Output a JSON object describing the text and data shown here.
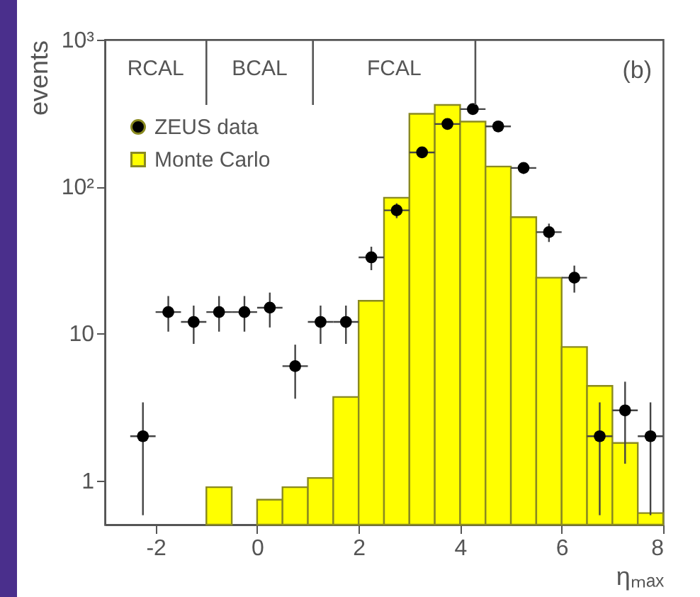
{
  "chart_data": {
    "type": "histogram",
    "xlabel": "ηₘₐₓ",
    "ylabel": "events",
    "xlim": [
      -3,
      8
    ],
    "xticks": [
      -2,
      0,
      2,
      4,
      6,
      8
    ],
    "ylim": [
      0.5,
      1000
    ],
    "yticks": [
      1,
      10,
      {
        "value": 100,
        "label": "10²"
      },
      {
        "value": 1000,
        "label": "10³"
      }
    ],
    "log": true,
    "grid": false,
    "legend": "top left",
    "bins": [
      -1,
      -0.5,
      0,
      0.5,
      1,
      1.5,
      2,
      2.5,
      3,
      3.5,
      4,
      4.5,
      5,
      5.5,
      6,
      6.5,
      7,
      7.5,
      8
    ],
    "series": [
      {
        "name": "ZEUS data",
        "type": "scatter",
        "color": "#000000",
        "marker": "circle",
        "x": [
          -2.25,
          -1.75,
          -1.25,
          -0.75,
          -0.25,
          0.25,
          0.75,
          1.25,
          1.75,
          2.25,
          2.75,
          3.25,
          3.75,
          4.25,
          4.75,
          5.25,
          5.75,
          6.25,
          6.75,
          7.25,
          7.75
        ],
        "values": [
          2,
          14,
          12,
          14,
          14,
          15,
          6,
          12,
          12,
          33,
          69,
          171,
          267,
          337,
          257,
          134,
          49,
          24,
          2,
          3,
          2
        ],
        "errors": [
          [
            0.58,
            3.4
          ],
          [
            10.3,
            18
          ],
          [
            8.5,
            15.5
          ],
          [
            10.3,
            18
          ],
          [
            10.3,
            18
          ],
          [
            11,
            19
          ],
          [
            3.6,
            8.4
          ],
          [
            8.5,
            15.5
          ],
          [
            8.5,
            15.5
          ],
          [
            27,
            39
          ],
          [
            61,
            77
          ],
          [
            158,
            184
          ],
          [
            251,
            283
          ],
          [
            319,
            355
          ],
          [
            241,
            273
          ],
          [
            122,
            146
          ],
          [
            42,
            56
          ],
          [
            19,
            29
          ],
          [
            0.58,
            3.4
          ],
          [
            1.3,
            4.7
          ],
          [
            0.58,
            3.4
          ]
        ],
        "xerrors": [
          0.25,
          0.25,
          0.25,
          0.25,
          0.25,
          0.25,
          0.25,
          0.25,
          0.25,
          0.25,
          0.25,
          0.25,
          0.25,
          0.25,
          0.25,
          0.25,
          0.25,
          0.25,
          0.25,
          0.25,
          0.25
        ]
      },
      {
        "name": "Monte Carlo",
        "color": "#ffff00",
        "values": [
          0.9,
          null,
          0.74,
          0.9,
          1.04,
          3.7,
          16.7,
          84,
          313,
          360,
          277,
          137,
          62,
          24,
          8.1,
          4.4,
          1.8,
          0.6
        ]
      }
    ],
    "ref_lines": [
      {
        "axis": "x",
        "value": -1
      },
      {
        "axis": "x",
        "value": 1.1
      },
      {
        "axis": "x",
        "value": 4.3
      }
    ],
    "annotations": [
      "RCAL",
      "BCAL",
      "FCAL",
      "(b)"
    ]
  }
}
